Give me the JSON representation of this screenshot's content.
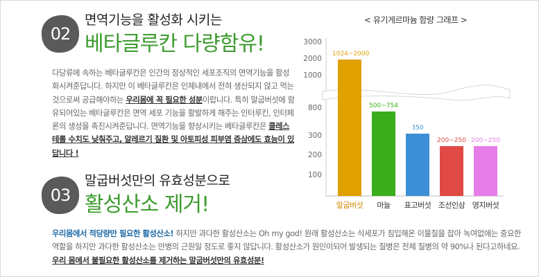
{
  "section2": {
    "number": "02",
    "subtitle": "면역기능을 활성화 시키는",
    "heading": "베타글루칸 다량함유!",
    "body_p1": "다당류에 속하는 베타글루칸은 인간의 정상적인 세포조직의 면역기능을 활성화시켜준답니다. 하지만 이 베타글루칸은 인체내에서 전혀 생산되지 않고 먹는것으로써 공급해야하는 ",
    "body_em1": "우리몸에 꼭 필요한 성분",
    "body_p2": "이랍니다. 특히 말굽버섯에 함유되어있는 베타글루칸은 면역 세포 기능을 활발하게 해주는 인터루킨, 인터페론의 생성을 촉진시켜준답니다. 면역기능을 향상시키는 베타글루칸은 ",
    "body_em2": "콜레스테롤 수치도 낮춰주고, 알레르기 질환 및 아토피성 피부염 증상에도 효능이 있답니다 !"
  },
  "section3": {
    "number": "03",
    "subtitle": "말굽버섯만의 유효성분으로",
    "heading": "활성산소 제거!",
    "body_em1": "우리몸에서 적당량만 필요한 활성산소!",
    "body_p1": " 하지만 과다한 활성산소는 Oh my god! 원래 활성산소는 식세포가 침입해온 이물질을 잡아 녹여없애는 중요한 역할을 하지만 과다한 활성산소는 만병의 근원일 정도로 좋지 않답니다. 활성산소가 원인이되어 발생되는 질병은 전체 질병의 약 90%나 된다고하네요. ",
    "body_em2": "우리 몸에서 불필요한 활성산소를 제거하는 말굽버섯만의 유효성분!"
  },
  "chart_data": {
    "type": "bar",
    "title": "< 유기게르마늄 함량 그래프 >",
    "categories": [
      "말굽버섯",
      "마늘",
      "표고버섯",
      "조선인삼",
      "영지버섯"
    ],
    "value_labels": [
      "1024~2000",
      "500~754",
      "350",
      "200~250",
      "200~250"
    ],
    "values": [
      2000,
      754,
      350,
      250,
      250
    ],
    "yticks": [
      "3000",
      "2000",
      "1000",
      "800",
      "300",
      "200",
      "100"
    ],
    "axis_break": [
      1000,
      800
    ],
    "colors": [
      "#e0a000",
      "#3aae1a",
      "#3c8fd6",
      "#e04a44",
      "#e77de8"
    ],
    "grid": false
  }
}
